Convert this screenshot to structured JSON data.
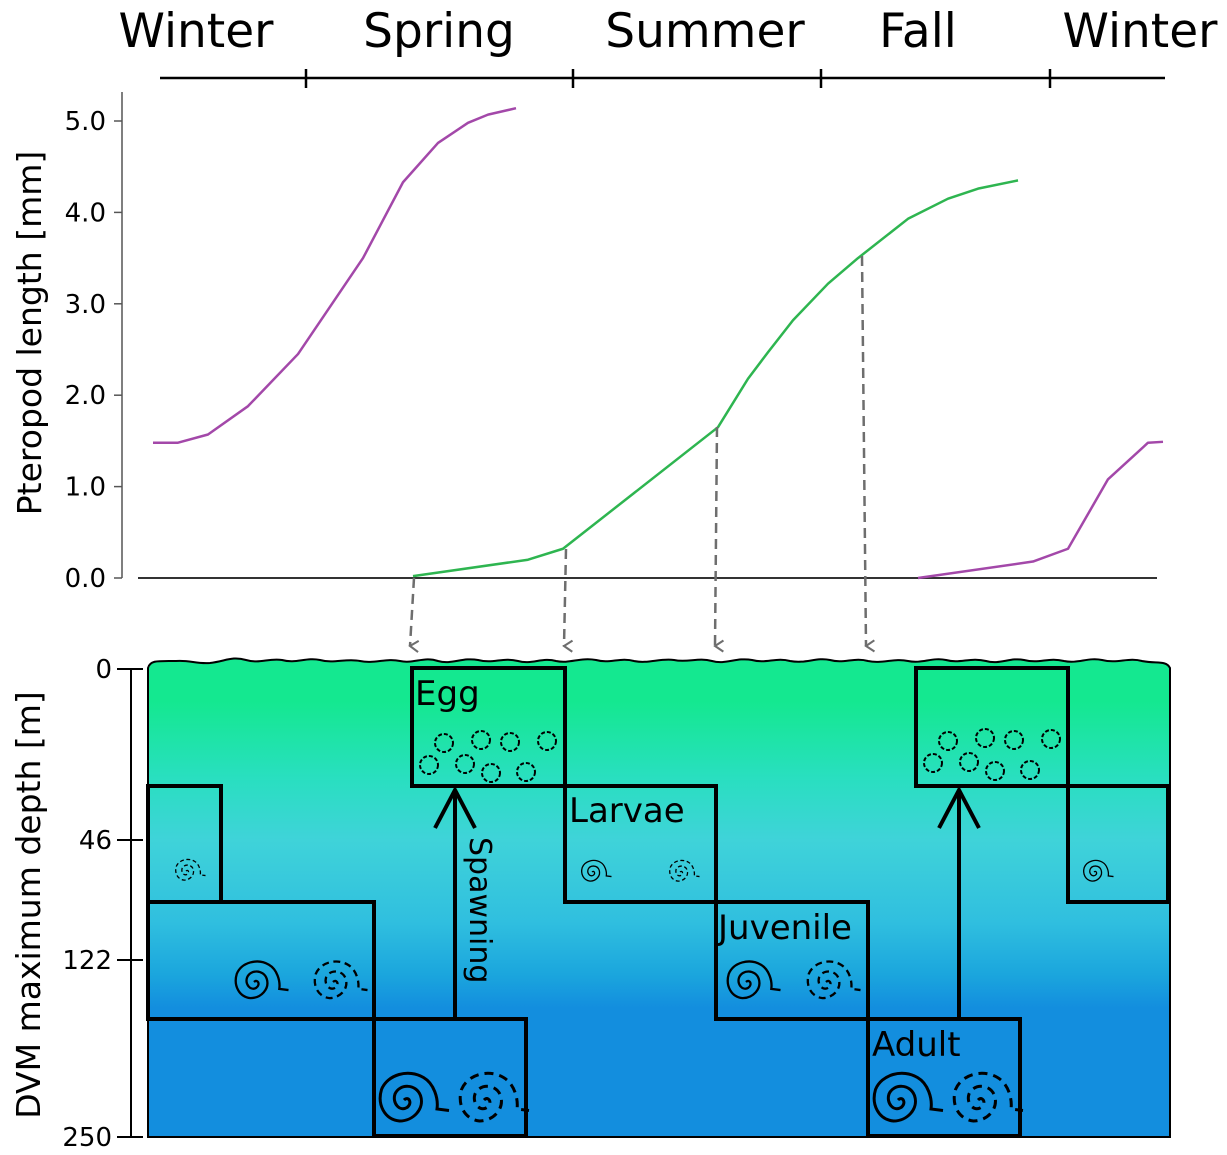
{
  "seasons": [
    "Winter",
    "Spring",
    "Summer",
    "Fall",
    "Winter"
  ],
  "top_chart": {
    "ylabel": "Pteropod length [mm]",
    "yticks": [
      "5.0",
      "4.0",
      "3.0",
      "2.0",
      "1.0",
      "0.0"
    ],
    "ylim": [
      0,
      5.3
    ]
  },
  "bottom_chart": {
    "ylabel": "DVM maximum depth [m]",
    "yticks": [
      "0",
      "46",
      "122",
      "250"
    ]
  },
  "stages": {
    "egg": "Egg",
    "larvae": "Larvae",
    "juvenile": "Juvenile",
    "adult": "Adult"
  },
  "spawning_label": "Spawning",
  "colors": {
    "cohort_previous": "#a348a9",
    "cohort_current": "#2eb550",
    "arrow_gray": "#6e6e6e",
    "water_surface": "#14e890",
    "water_mid": "#3fd3d9",
    "water_deep": "#138ede"
  },
  "chart_data": {
    "type": "line",
    "ylabel": "Pteropod length [mm]",
    "ylim": [
      0,
      5.3
    ],
    "series": [
      {
        "x": [
          1,
          26,
          56,
          96,
          146,
          211,
          251,
          286,
          316,
          336,
          364
        ],
        "values": [
          1.48,
          1.48,
          1.57,
          1.88,
          2.45,
          3.5,
          4.33,
          4.76,
          4.98,
          5.07,
          5.14
        ]
      },
      {
        "x": [
          261,
          376,
          411,
          566,
          596,
          616,
          641,
          676,
          706,
          756,
          796,
          826,
          866
        ],
        "values": [
          0.02,
          0.2,
          0.32,
          1.65,
          2.18,
          2.47,
          2.82,
          3.22,
          3.5,
          3.93,
          4.15,
          4.26,
          4.35
        ]
      },
      {
        "x": [
          766,
          881,
          916,
          956,
          996,
          1011
        ],
        "values": [
          0.0,
          0.18,
          0.32,
          1.08,
          1.48,
          1.49
        ]
      }
    ]
  }
}
